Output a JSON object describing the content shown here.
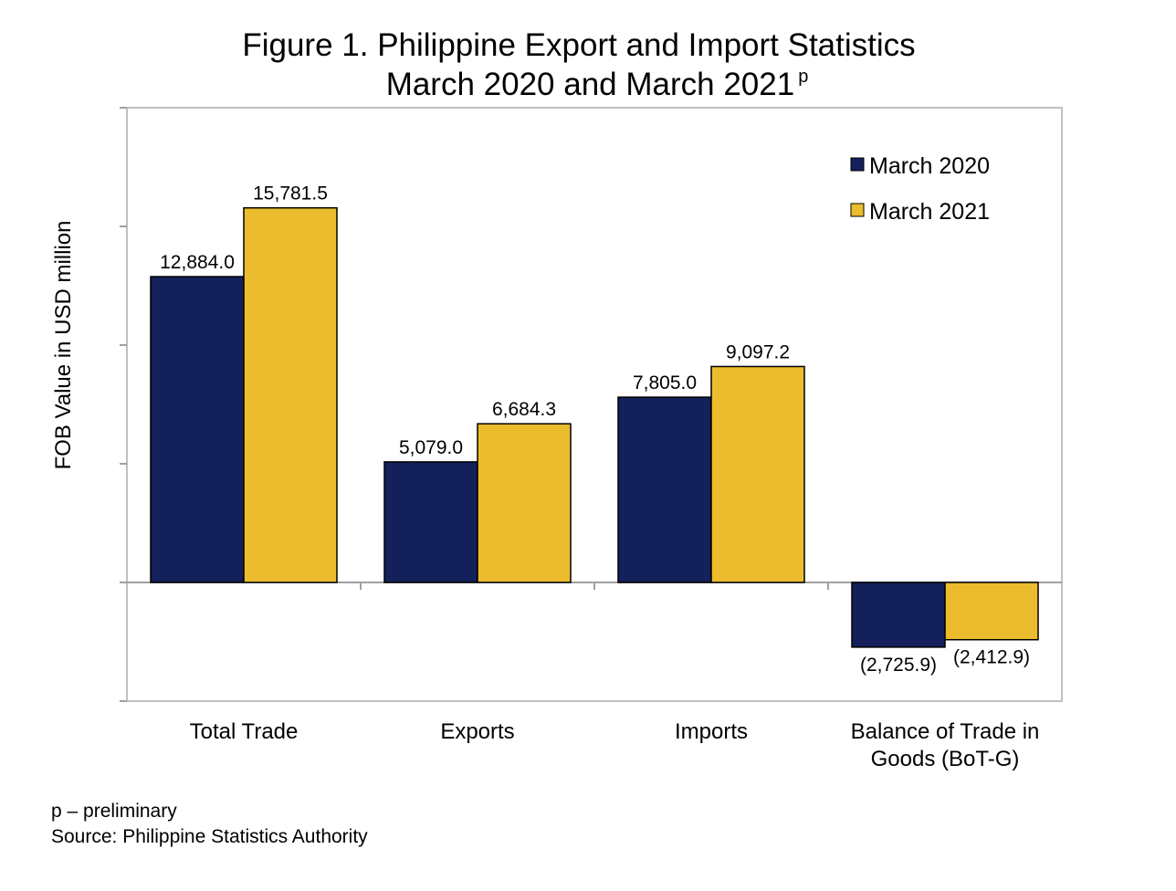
{
  "chart_data": {
    "type": "bar",
    "title_line1": "Figure 1.  Philippine Export and Import Statistics",
    "title_line2": "March 2020 and March 2021",
    "title_superscript": "p",
    "ylabel": "FOB Value in USD million",
    "xlabel": "",
    "ylim": [
      -5000,
      20000
    ],
    "categories": [
      "Total Trade",
      "Exports",
      "Imports",
      "Balance of Trade in Goods (BoT-G)"
    ],
    "category_lines": [
      [
        "Total Trade"
      ],
      [
        "Exports"
      ],
      [
        "Imports"
      ],
      [
        "Balance of Trade in",
        "Goods (BoT-G)"
      ]
    ],
    "series": [
      {
        "name": "March 2020",
        "color": "#14205a",
        "values": [
          12884.0,
          5079.0,
          7805.0,
          -2725.9
        ],
        "labels": [
          "12,884.0",
          "5,079.0",
          "7,805.0",
          "(2,725.9)"
        ]
      },
      {
        "name": "March 2021",
        "color": "#ebbd2e",
        "values": [
          15781.5,
          6684.3,
          9097.2,
          -2412.9
        ],
        "labels": [
          "15,781.5",
          "6,684.3",
          "9,097.2",
          "(2,412.9)"
        ]
      }
    ],
    "legend_position": "top-right",
    "grid": false
  },
  "footnote": "p – preliminary",
  "source": "Source:  Philippine Statistics Authority"
}
